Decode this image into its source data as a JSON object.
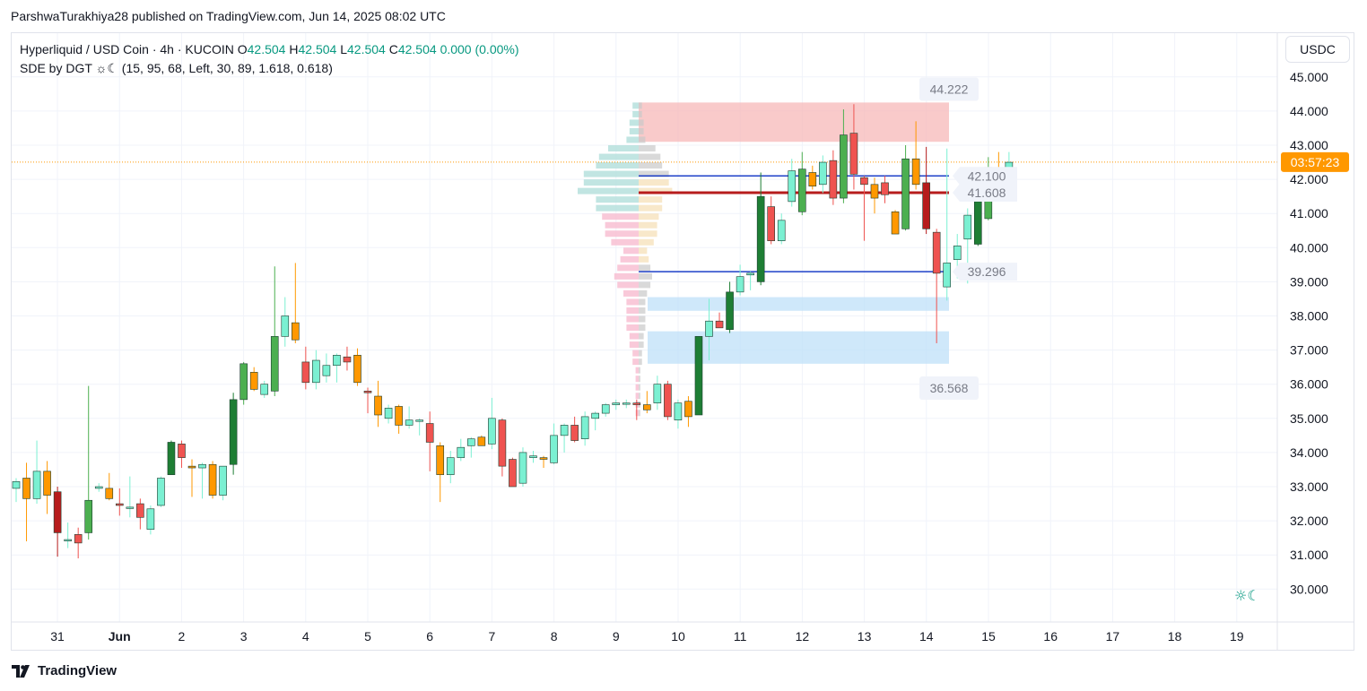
{
  "header": {
    "publisher_line": "ParshwaTurakhiya28 published on TradingView.com, Jun 14, 2025 08:02 UTC"
  },
  "legend": {
    "symbol": "Hyperliquid / USD Coin · 4h · KUCOIN",
    "open_label": "O",
    "open": "42.504",
    "high_label": "H",
    "high": "42.504",
    "low_label": "L",
    "low": "42.504",
    "close_label": "C",
    "close": "42.504",
    "change": "0.000 (0.00%)",
    "indicator": "SDE by DGT ☼☾ (15, 95, 68, Left, 30, 89, 1.618, 0.618)"
  },
  "currency": "USDC",
  "countdown": "03:57:23",
  "footer": {
    "brand": "TradingView"
  },
  "colors": {
    "up": "#26a69a",
    "up_light": "#7bf0d2",
    "up_dark": "#1e7e34",
    "down": "#ef5350",
    "down_dark": "#b71c1c",
    "orange": "#ff9800",
    "current_price_line": "#ff9800",
    "level_line": "#1e40c8",
    "supply_zone": "#f7b8b8",
    "demand_zone": "#bfe0f8"
  },
  "chart_data": {
    "type": "candlestick",
    "title": "Hyperliquid / USD Coin · 4h · KUCOIN",
    "y_axis": {
      "range": [
        29.0,
        45.5
      ],
      "ticks": [
        "30.000",
        "31.000",
        "32.000",
        "33.000",
        "34.000",
        "35.000",
        "36.000",
        "37.000",
        "38.000",
        "39.000",
        "40.000",
        "41.000",
        "42.000",
        "43.000",
        "44.000",
        "45.000"
      ],
      "side": "right"
    },
    "x_axis": {
      "ticks": [
        {
          "label": "31",
          "day": 0
        },
        {
          "label": "Jun",
          "day": 1
        },
        {
          "label": "2",
          "day": 2
        },
        {
          "label": "3",
          "day": 3
        },
        {
          "label": "4",
          "day": 4
        },
        {
          "label": "5",
          "day": 5
        },
        {
          "label": "6",
          "day": 6
        },
        {
          "label": "7",
          "day": 7
        },
        {
          "label": "8",
          "day": 8
        },
        {
          "label": "9",
          "day": 9
        },
        {
          "label": "10",
          "day": 10
        },
        {
          "label": "11",
          "day": 11
        },
        {
          "label": "12",
          "day": 12
        },
        {
          "label": "13",
          "day": 13
        },
        {
          "label": "14",
          "day": 14
        },
        {
          "label": "15",
          "day": 15
        },
        {
          "label": "16",
          "day": 16
        },
        {
          "label": "17",
          "day": 17
        },
        {
          "label": "18",
          "day": 18
        },
        {
          "label": "19",
          "day": 19
        }
      ]
    },
    "candles": [
      {
        "o": 32.95,
        "h": 33.25,
        "l": 32.55,
        "c": 33.15
      },
      {
        "o": 33.25,
        "h": 33.7,
        "l": 31.4,
        "c": 32.65
      },
      {
        "o": 32.65,
        "h": 34.35,
        "l": 32.5,
        "c": 33.45
      },
      {
        "o": 33.45,
        "h": 33.75,
        "l": 32.2,
        "c": 32.75
      },
      {
        "o": 32.85,
        "h": 33.0,
        "l": 30.95,
        "c": 31.65
      },
      {
        "o": 31.45,
        "h": 31.95,
        "l": 31.2,
        "c": 31.45
      },
      {
        "o": 31.6,
        "h": 31.8,
        "l": 30.9,
        "c": 31.35
      },
      {
        "o": 31.65,
        "h": 35.95,
        "l": 31.45,
        "c": 32.6
      },
      {
        "o": 32.95,
        "h": 33.1,
        "l": 32.85,
        "c": 33.0
      },
      {
        "o": 32.95,
        "h": 33.4,
        "l": 32.6,
        "c": 32.65
      },
      {
        "o": 32.5,
        "h": 32.95,
        "l": 32.15,
        "c": 32.45
      },
      {
        "o": 32.4,
        "h": 33.3,
        "l": 32.1,
        "c": 32.4
      },
      {
        "o": 32.5,
        "h": 32.65,
        "l": 31.75,
        "c": 32.1
      },
      {
        "o": 31.75,
        "h": 32.45,
        "l": 31.6,
        "c": 32.35
      },
      {
        "o": 32.45,
        "h": 33.3,
        "l": 32.4,
        "c": 33.25
      },
      {
        "o": 33.35,
        "h": 34.35,
        "l": 33.35,
        "c": 34.3
      },
      {
        "o": 34.25,
        "h": 34.35,
        "l": 33.55,
        "c": 33.85
      },
      {
        "o": 33.6,
        "h": 33.8,
        "l": 32.7,
        "c": 33.55
      },
      {
        "o": 33.55,
        "h": 33.7,
        "l": 32.65,
        "c": 33.65
      },
      {
        "o": 33.65,
        "h": 33.75,
        "l": 32.65,
        "c": 32.75
      },
      {
        "o": 32.75,
        "h": 33.6,
        "l": 32.6,
        "c": 33.6
      },
      {
        "o": 33.65,
        "h": 35.75,
        "l": 33.35,
        "c": 35.55
      },
      {
        "o": 35.55,
        "h": 36.65,
        "l": 35.4,
        "c": 36.6
      },
      {
        "o": 36.35,
        "h": 36.5,
        "l": 35.8,
        "c": 35.85
      },
      {
        "o": 35.7,
        "h": 36.1,
        "l": 35.6,
        "c": 36.0
      },
      {
        "o": 35.8,
        "h": 39.45,
        "l": 35.65,
        "c": 37.4
      },
      {
        "o": 37.4,
        "h": 38.55,
        "l": 37.1,
        "c": 38.0
      },
      {
        "o": 37.8,
        "h": 39.55,
        "l": 37.2,
        "c": 37.3
      },
      {
        "o": 36.65,
        "h": 37.1,
        "l": 35.85,
        "c": 36.05
      },
      {
        "o": 36.05,
        "h": 37.0,
        "l": 35.85,
        "c": 36.7
      },
      {
        "o": 36.25,
        "h": 36.9,
        "l": 36.05,
        "c": 36.55
      },
      {
        "o": 36.55,
        "h": 36.9,
        "l": 36.05,
        "c": 36.85
      },
      {
        "o": 36.8,
        "h": 37.1,
        "l": 36.4,
        "c": 36.65
      },
      {
        "o": 36.85,
        "h": 37.05,
        "l": 35.95,
        "c": 36.05
      },
      {
        "o": 35.8,
        "h": 35.9,
        "l": 35.15,
        "c": 35.75
      },
      {
        "o": 35.65,
        "h": 36.1,
        "l": 34.75,
        "c": 35.1
      },
      {
        "o": 35.0,
        "h": 35.4,
        "l": 34.85,
        "c": 35.3
      },
      {
        "o": 35.35,
        "h": 35.4,
        "l": 34.55,
        "c": 34.8
      },
      {
        "o": 34.8,
        "h": 35.35,
        "l": 34.7,
        "c": 34.95
      },
      {
        "o": 34.95,
        "h": 35.0,
        "l": 34.5,
        "c": 34.95
      },
      {
        "o": 34.85,
        "h": 35.2,
        "l": 33.45,
        "c": 34.3
      },
      {
        "o": 34.2,
        "h": 34.3,
        "l": 32.55,
        "c": 33.35
      },
      {
        "o": 33.35,
        "h": 34.05,
        "l": 33.1,
        "c": 33.85
      },
      {
        "o": 33.85,
        "h": 34.4,
        "l": 33.75,
        "c": 34.15
      },
      {
        "o": 34.2,
        "h": 34.45,
        "l": 33.85,
        "c": 34.4
      },
      {
        "o": 34.45,
        "h": 34.5,
        "l": 34.2,
        "c": 34.2
      },
      {
        "o": 34.25,
        "h": 35.6,
        "l": 34.1,
        "c": 35.0
      },
      {
        "o": 34.95,
        "h": 35.0,
        "l": 33.3,
        "c": 33.6
      },
      {
        "o": 33.8,
        "h": 33.85,
        "l": 33.1,
        "c": 33.0
      },
      {
        "o": 33.1,
        "h": 34.15,
        "l": 33.0,
        "c": 34.0
      },
      {
        "o": 33.85,
        "h": 34.05,
        "l": 33.7,
        "c": 33.9
      },
      {
        "o": 33.85,
        "h": 33.9,
        "l": 33.55,
        "c": 33.8
      },
      {
        "o": 33.7,
        "h": 34.85,
        "l": 33.65,
        "c": 34.5
      },
      {
        "o": 34.5,
        "h": 34.85,
        "l": 34.0,
        "c": 34.8
      },
      {
        "o": 34.8,
        "h": 35.05,
        "l": 34.3,
        "c": 34.35
      },
      {
        "o": 34.4,
        "h": 35.2,
        "l": 34.2,
        "c": 35.05
      },
      {
        "o": 35.0,
        "h": 35.2,
        "l": 34.65,
        "c": 35.15
      },
      {
        "o": 35.15,
        "h": 35.45,
        "l": 35.05,
        "c": 35.4
      },
      {
        "o": 35.4,
        "h": 35.55,
        "l": 35.25,
        "c": 35.45
      },
      {
        "o": 35.45,
        "h": 35.55,
        "l": 35.3,
        "c": 35.45
      },
      {
        "o": 35.45,
        "h": 35.55,
        "l": 34.95,
        "c": 35.4
      },
      {
        "o": 35.4,
        "h": 35.8,
        "l": 35.15,
        "c": 35.25
      },
      {
        "o": 35.45,
        "h": 36.25,
        "l": 35.25,
        "c": 36.0
      },
      {
        "o": 36.0,
        "h": 36.1,
        "l": 34.95,
        "c": 35.05
      },
      {
        "o": 34.95,
        "h": 35.55,
        "l": 34.7,
        "c": 35.45
      },
      {
        "o": 35.5,
        "h": 35.65,
        "l": 34.75,
        "c": 35.05
      },
      {
        "o": 35.1,
        "h": 37.4,
        "l": 35.1,
        "c": 37.4
      },
      {
        "o": 37.4,
        "h": 38.5,
        "l": 36.7,
        "c": 37.85
      },
      {
        "o": 37.85,
        "h": 38.1,
        "l": 37.7,
        "c": 37.65
      },
      {
        "o": 37.6,
        "h": 39.0,
        "l": 37.5,
        "c": 38.7
      },
      {
        "o": 38.7,
        "h": 39.5,
        "l": 38.6,
        "c": 39.15
      },
      {
        "o": 39.2,
        "h": 39.3,
        "l": 38.75,
        "c": 39.25
      },
      {
        "o": 39.0,
        "h": 42.2,
        "l": 38.9,
        "c": 41.5
      },
      {
        "o": 41.2,
        "h": 41.5,
        "l": 40.1,
        "c": 40.2
      },
      {
        "o": 40.2,
        "h": 41.0,
        "l": 40.1,
        "c": 40.8
      },
      {
        "o": 41.35,
        "h": 42.6,
        "l": 41.2,
        "c": 42.25
      },
      {
        "o": 41.05,
        "h": 42.8,
        "l": 40.95,
        "c": 42.3
      },
      {
        "o": 42.2,
        "h": 42.4,
        "l": 41.7,
        "c": 41.8
      },
      {
        "o": 41.85,
        "h": 42.7,
        "l": 41.6,
        "c": 42.5
      },
      {
        "o": 42.55,
        "h": 42.85,
        "l": 41.25,
        "c": 41.45
      },
      {
        "o": 41.45,
        "h": 44.05,
        "l": 41.3,
        "c": 43.3
      },
      {
        "o": 43.35,
        "h": 44.2,
        "l": 41.7,
        "c": 42.15
      },
      {
        "o": 42.05,
        "h": 42.1,
        "l": 40.2,
        "c": 41.85
      },
      {
        "o": 41.85,
        "h": 42.05,
        "l": 41.0,
        "c": 41.45
      },
      {
        "o": 41.9,
        "h": 42.1,
        "l": 41.3,
        "c": 41.55
      },
      {
        "o": 41.05,
        "h": 41.1,
        "l": 40.45,
        "c": 40.4
      },
      {
        "o": 40.55,
        "h": 43.0,
        "l": 40.5,
        "c": 42.6
      },
      {
        "o": 42.6,
        "h": 43.7,
        "l": 41.7,
        "c": 41.85
      },
      {
        "o": 41.9,
        "h": 42.95,
        "l": 40.4,
        "c": 40.55
      },
      {
        "o": 40.45,
        "h": 40.55,
        "l": 37.2,
        "c": 39.25
      },
      {
        "o": 38.85,
        "h": 42.9,
        "l": 38.45,
        "c": 39.55
      },
      {
        "o": 39.65,
        "h": 40.4,
        "l": 39.1,
        "c": 40.05
      },
      {
        "o": 40.25,
        "h": 41.15,
        "l": 38.95,
        "c": 40.95
      },
      {
        "o": 40.1,
        "h": 41.65,
        "l": 40.05,
        "c": 41.35
      },
      {
        "o": 40.85,
        "h": 42.65,
        "l": 40.8,
        "c": 42.35
      },
      {
        "o": 42.05,
        "h": 42.8,
        "l": 41.6,
        "c": 41.75
      },
      {
        "o": 41.7,
        "h": 42.8,
        "l": 41.6,
        "c": 42.5
      }
    ],
    "levels": [
      {
        "value": 42.1,
        "label": "42.100",
        "color": "#1e40c8"
      },
      {
        "value": 41.608,
        "label": "41.608",
        "color": "#b71c1c"
      },
      {
        "value": 39.296,
        "label": "39.296",
        "color": "#1e40c8"
      }
    ],
    "range_labels": [
      {
        "value": 44.222,
        "label": "44.222"
      },
      {
        "value": 36.568,
        "label": "36.568"
      }
    ],
    "zones": [
      {
        "from": 43.1,
        "to": 44.25,
        "kind": "supply"
      },
      {
        "from": 38.15,
        "to": 38.55,
        "kind": "demand"
      },
      {
        "from": 36.6,
        "to": 37.55,
        "kind": "demand"
      }
    ],
    "current_price": 42.504,
    "grid": true
  }
}
